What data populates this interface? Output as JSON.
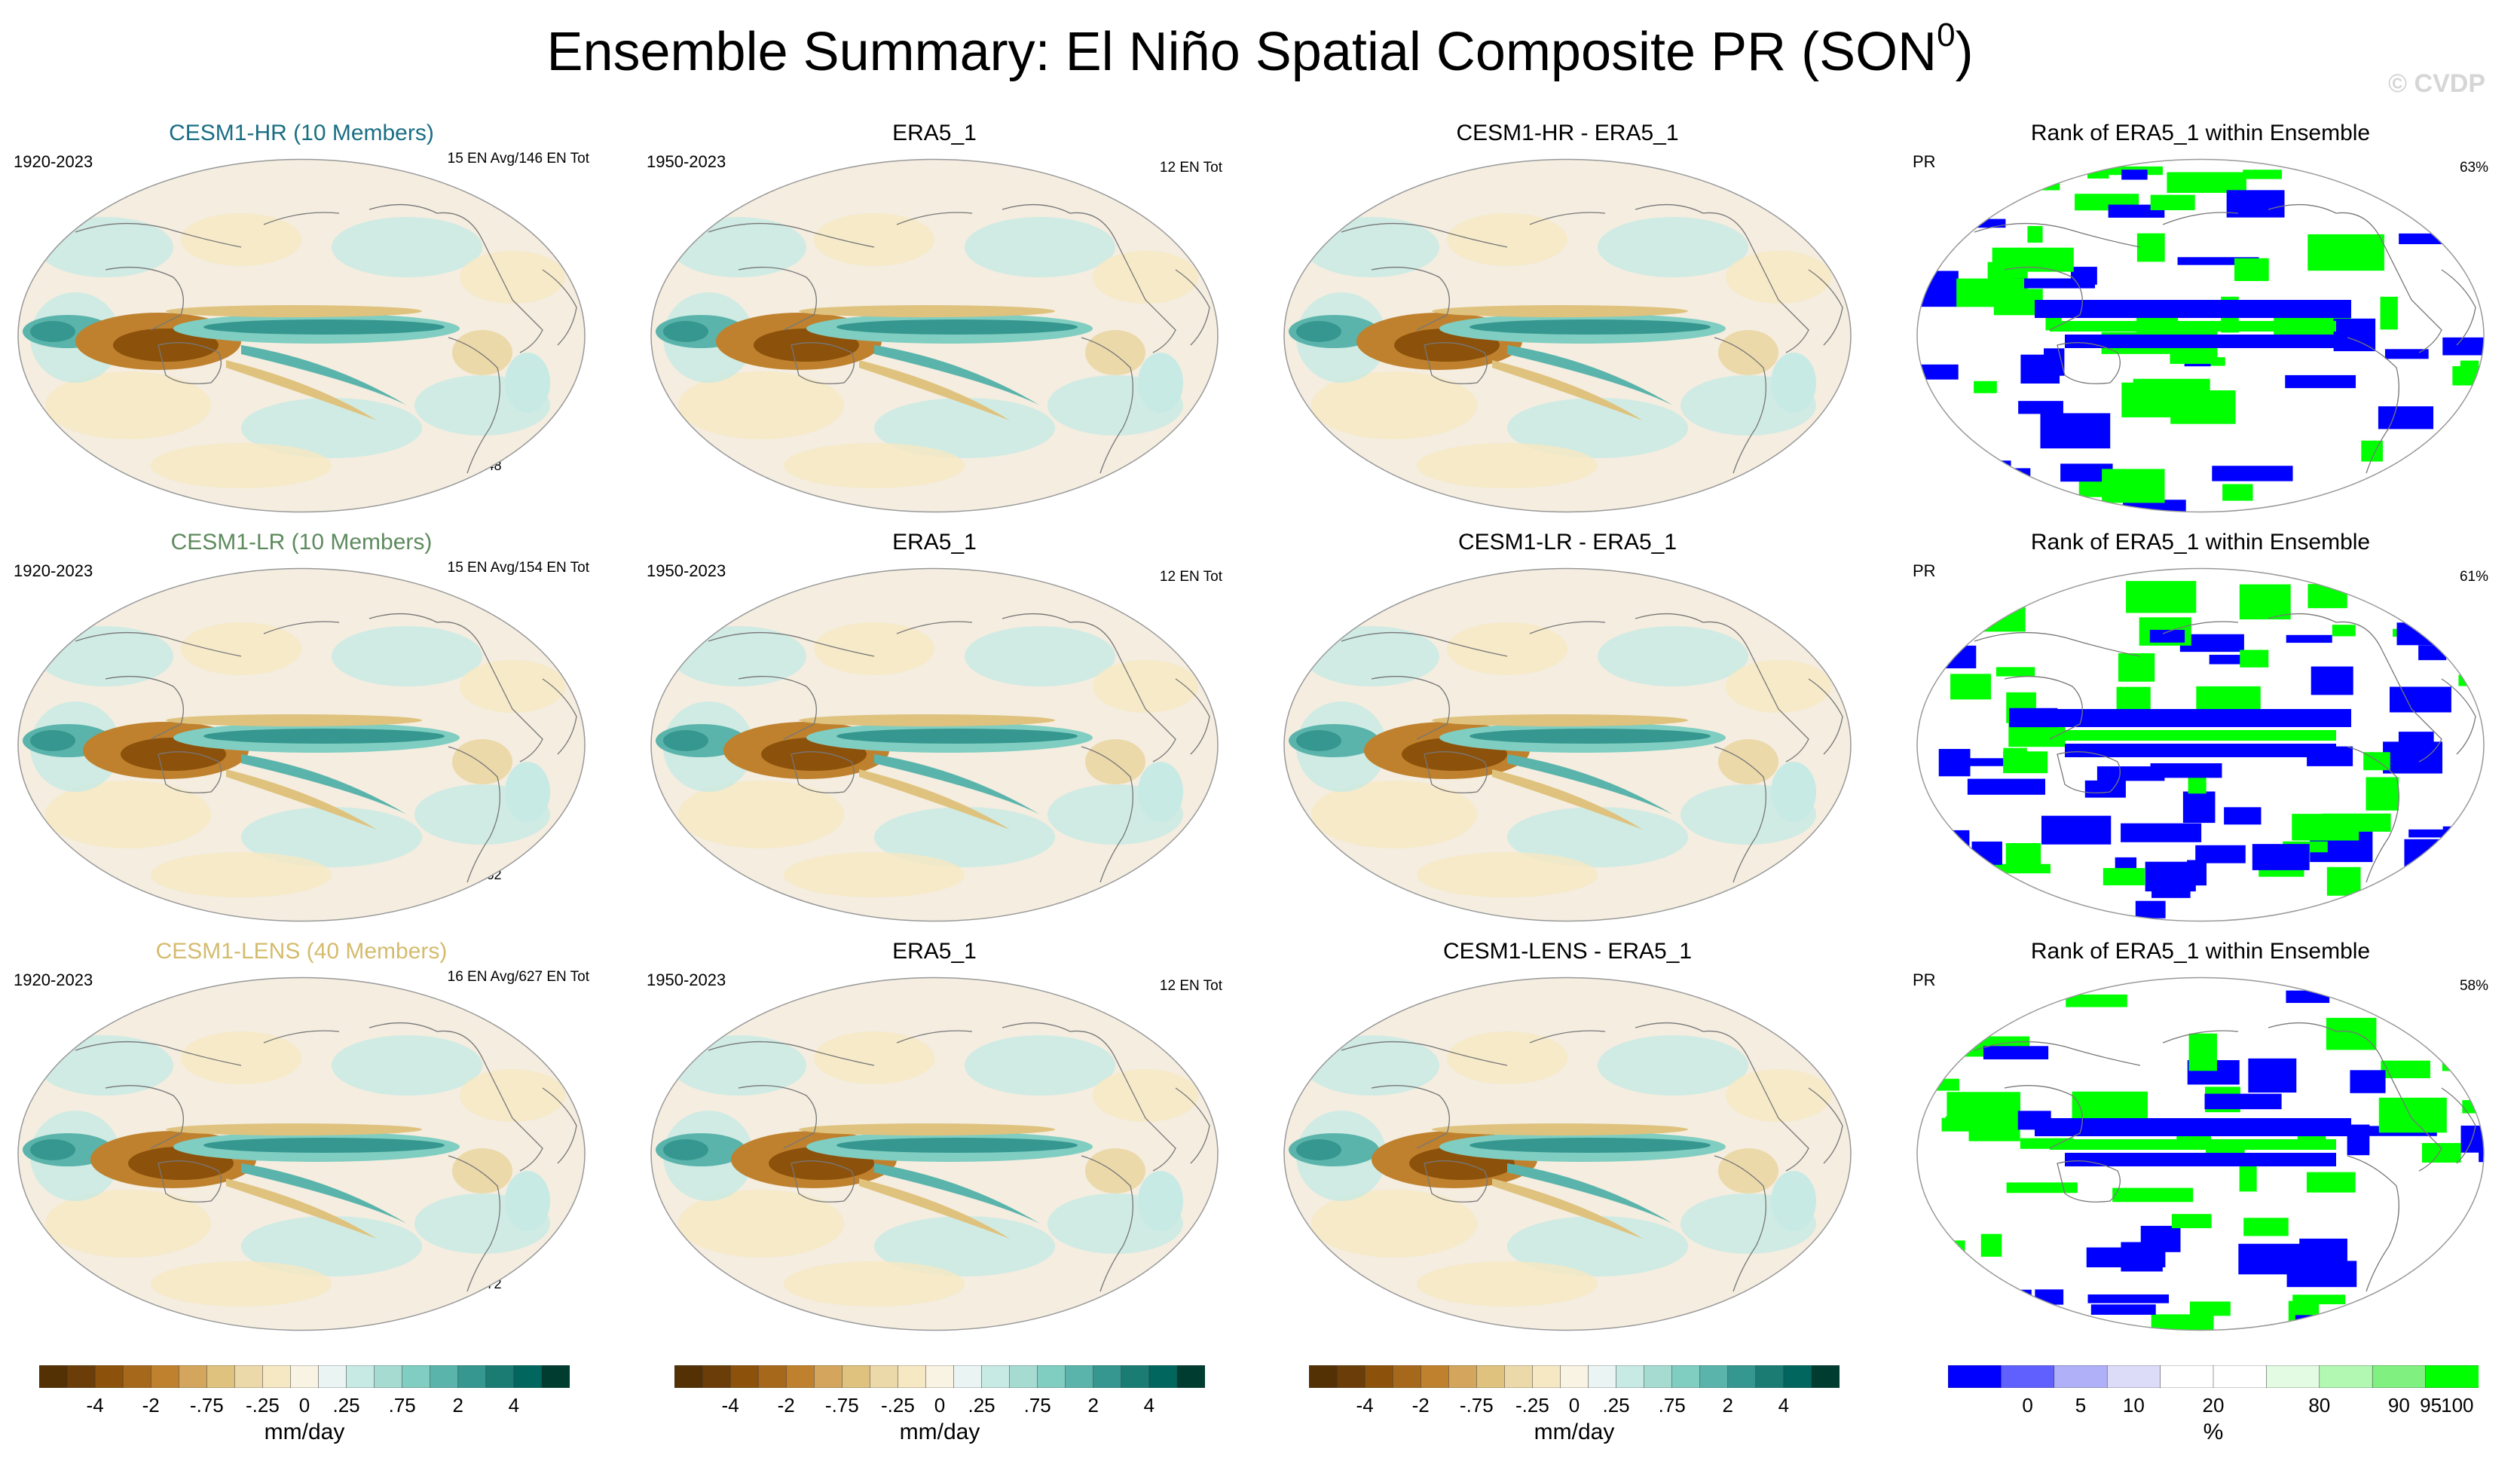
{
  "title_main": "Ensemble Summary: El Niño Spatial Composite PR (SON",
  "title_sup": "0",
  "title_end": ")",
  "watermark": "© CVDP",
  "rows": [
    {
      "model": {
        "title": "CESM1-HR (10 Members)",
        "title_color": "#1a6e84",
        "period": "1920-2023",
        "events": "15 EN Avg/146 EN Tot",
        "corr": "r=0.48"
      },
      "obs": {
        "title": "ERA5_1",
        "period": "1950-2023",
        "events": "12 EN Tot"
      },
      "diff": {
        "title": "CESM1-HR - ERA5_1"
      },
      "rank": {
        "title": "Rank of ERA5_1 within Ensemble",
        "var": "PR",
        "pct": "63%"
      }
    },
    {
      "model": {
        "title": "CESM1-LR (10 Members)",
        "title_color": "#5e8a5e",
        "period": "1920-2023",
        "events": "15 EN Avg/154 EN Tot",
        "corr": "r=0.62"
      },
      "obs": {
        "title": "ERA5_1",
        "period": "1950-2023",
        "events": "12 EN Tot"
      },
      "diff": {
        "title": "CESM1-LR - ERA5_1"
      },
      "rank": {
        "title": "Rank of ERA5_1 within Ensemble",
        "var": "PR",
        "pct": "61%"
      }
    },
    {
      "model": {
        "title": "CESM1-LENS (40 Members)",
        "title_color": "#d4bc6e",
        "period": "1920-2023",
        "events": "16 EN Avg/627 EN Tot",
        "corr": "r=0.72"
      },
      "obs": {
        "title": "ERA5_1",
        "period": "1950-2023",
        "events": "12 EN Tot"
      },
      "diff": {
        "title": "CESM1-LENS - ERA5_1"
      },
      "rank": {
        "title": "Rank of ERA5_1 within Ensemble",
        "var": "PR",
        "pct": "58%"
      }
    }
  ],
  "colorbar_pr": {
    "labels": [
      "-4",
      "-2",
      "-.75",
      "-.25",
      "0",
      ".25",
      ".75",
      "2",
      "4"
    ],
    "unit": "mm/day",
    "colors": [
      "#543005",
      "#6b3d09",
      "#8c510a",
      "#a6691c",
      "#bf812d",
      "#d4a55c",
      "#dfc27d",
      "#ecd9aa",
      "#f6e8c3",
      "#f9f3e4",
      "#eaf5f3",
      "#c7eae5",
      "#a6dbd1",
      "#80cdc1",
      "#5ab4ab",
      "#35978f",
      "#1b7c74",
      "#01665e",
      "#003c30"
    ]
  },
  "colorbar_rank": {
    "labels": [
      "0",
      "5",
      "10",
      "20",
      "80",
      "90",
      "95",
      "100"
    ],
    "unit": "%",
    "colors": [
      "#0000ff",
      "#6060ff",
      "#b0b0f8",
      "#dcdcf8",
      "#ffffff",
      "#ffffff",
      "#e2fbe2",
      "#b2f7b2",
      "#80f080",
      "#00ff00"
    ]
  },
  "chart_data": {
    "type": "heatmap",
    "title": "Ensemble Summary: El Niño Spatial Composite PR (SON0)",
    "projection": "Robinson global maps, 3 rows x 4 columns",
    "panels": [
      {
        "row": 1,
        "col": 1,
        "title": "CESM1-HR (10 Members)",
        "period": "1920-2023",
        "events": "15 EN Avg/146 EN Tot",
        "pattern_correlation": 0.48
      },
      {
        "row": 1,
        "col": 2,
        "title": "ERA5_1",
        "period": "1950-2023",
        "events": "12 EN Tot"
      },
      {
        "row": 1,
        "col": 3,
        "title": "CESM1-HR - ERA5_1"
      },
      {
        "row": 1,
        "col": 4,
        "title": "Rank of ERA5_1 within Ensemble",
        "var": "PR",
        "percent": 63
      },
      {
        "row": 2,
        "col": 1,
        "title": "CESM1-LR (10 Members)",
        "period": "1920-2023",
        "events": "15 EN Avg/154 EN Tot",
        "pattern_correlation": 0.62
      },
      {
        "row": 2,
        "col": 2,
        "title": "ERA5_1",
        "period": "1950-2023",
        "events": "12 EN Tot"
      },
      {
        "row": 2,
        "col": 3,
        "title": "CESM1-LR - ERA5_1"
      },
      {
        "row": 2,
        "col": 4,
        "title": "Rank of ERA5_1 within Ensemble",
        "var": "PR",
        "percent": 61
      },
      {
        "row": 3,
        "col": 1,
        "title": "CESM1-LENS (40 Members)",
        "period": "1920-2023",
        "events": "16 EN Avg/627 EN Tot",
        "pattern_correlation": 0.72
      },
      {
        "row": 3,
        "col": 2,
        "title": "ERA5_1",
        "period": "1950-2023",
        "events": "12 EN Tot"
      },
      {
        "row": 3,
        "col": 3,
        "title": "CESM1-LENS - ERA5_1"
      },
      {
        "row": 3,
        "col": 4,
        "title": "Rank of ERA5_1 within Ensemble",
        "var": "PR",
        "percent": 58
      }
    ],
    "colorbar_pr_levels": [
      -4,
      -2,
      -0.75,
      -0.25,
      0,
      0.25,
      0.75,
      2,
      4
    ],
    "colorbar_pr_unit": "mm/day",
    "colorbar_rank_levels": [
      0,
      5,
      10,
      20,
      80,
      90,
      95,
      100
    ],
    "colorbar_rank_unit": "%"
  }
}
